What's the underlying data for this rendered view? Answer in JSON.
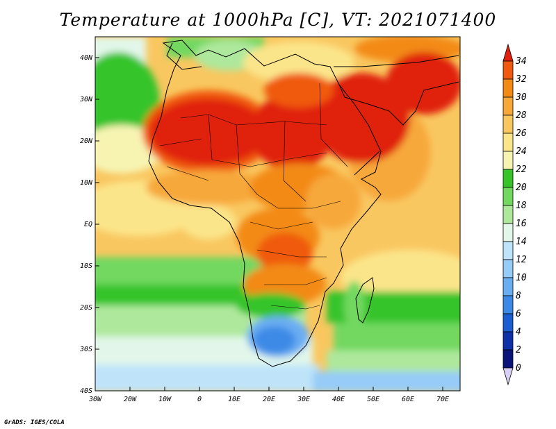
{
  "title": "Temperature at 1000hPa [C], VT: 2021071400",
  "credit": "GrADS: IGES/COLA",
  "x_ticks": [
    "30W",
    "20W",
    "10W",
    "0",
    "10E",
    "20E",
    "30E",
    "40E",
    "50E",
    "60E",
    "70E"
  ],
  "y_ticks": [
    "40N",
    "30N",
    "20N",
    "10N",
    "EQ",
    "10S",
    "20S",
    "30S",
    "40S"
  ],
  "colorbar": {
    "labels": [
      "34",
      "32",
      "30",
      "28",
      "26",
      "24",
      "22",
      "20",
      "18",
      "16",
      "14",
      "12",
      "10",
      "8",
      "6",
      "4",
      "2",
      "0"
    ],
    "top_cap": "#e0200e",
    "bottom_cap": "#d8d0f4",
    "colors": [
      "#e0200e",
      "#f05a10",
      "#f38a14",
      "#f7a83a",
      "#f9c760",
      "#fbe58a",
      "#f7f4b2",
      "#36c42a",
      "#72d860",
      "#aee89c",
      "#e2f7ea",
      "#bfe4fa",
      "#96ccf7",
      "#6aaef2",
      "#3c8ae6",
      "#1c5ed2",
      "#1030a8",
      "#0a1478"
    ]
  }
}
